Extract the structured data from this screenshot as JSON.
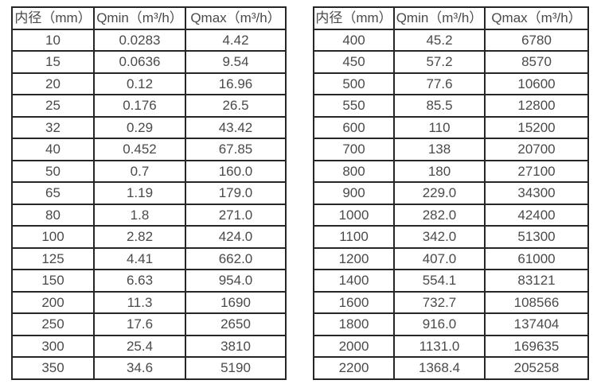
{
  "tables": [
    {
      "name": "small-diameter-table",
      "headers": [
        "内径（mm）",
        "Qmin（m³/h）",
        "Qmax（m³/h）"
      ],
      "rows": [
        [
          "10",
          "0.0283",
          "4.42"
        ],
        [
          "15",
          "0.0636",
          "9.54"
        ],
        [
          "20",
          "0.12",
          "16.96"
        ],
        [
          "25",
          "0.176",
          "26.5"
        ],
        [
          "32",
          "0.29",
          "43.42"
        ],
        [
          "40",
          "0.452",
          "67.85"
        ],
        [
          "50",
          "0.7",
          "160.0"
        ],
        [
          "65",
          "1.19",
          "179.0"
        ],
        [
          "80",
          "1.8",
          "271.0"
        ],
        [
          "100",
          "2.82",
          "424.0"
        ],
        [
          "125",
          "4.41",
          "662.0"
        ],
        [
          "150",
          "6.63",
          "954.0"
        ],
        [
          "200",
          "11.3",
          "1690"
        ],
        [
          "250",
          "17.6",
          "2650"
        ],
        [
          "300",
          "25.4",
          "3810"
        ],
        [
          "350",
          "34.6",
          "5190"
        ]
      ]
    },
    {
      "name": "large-diameter-table",
      "headers": [
        "内径（mm）",
        "Qmin（m³/h）",
        "Qmax（m³/h）"
      ],
      "rows": [
        [
          "400",
          "45.2",
          "6780"
        ],
        [
          "450",
          "57.2",
          "8570"
        ],
        [
          "500",
          "77.6",
          "10600"
        ],
        [
          "550",
          "85.5",
          "12800"
        ],
        [
          "600",
          "110",
          "15200"
        ],
        [
          "700",
          "138",
          "20700"
        ],
        [
          "800",
          "180",
          "27100"
        ],
        [
          "900",
          "229.0",
          "34300"
        ],
        [
          "1000",
          "282.0",
          "42400"
        ],
        [
          "1100",
          "342.0",
          "51300"
        ],
        [
          "1200",
          "407.0",
          "61000"
        ],
        [
          "1400",
          "554.1",
          "83121"
        ],
        [
          "1600",
          "732.7",
          "108566"
        ],
        [
          "1800",
          "916.0",
          "137404"
        ],
        [
          "2000",
          "1131.0",
          "169635"
        ],
        [
          "2200",
          "1368.4",
          "205258"
        ]
      ]
    }
  ],
  "colors": {
    "text": "#4a4a4a",
    "border": "#262626",
    "background": "#ffffff"
  }
}
